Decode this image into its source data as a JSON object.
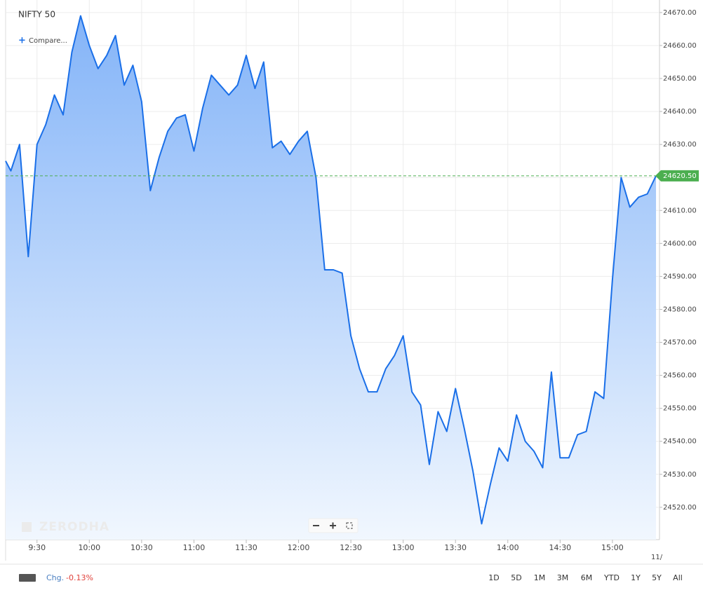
{
  "chart_data": {
    "type": "line",
    "title": "NIFTY 50",
    "x": [
      552,
      555,
      560,
      565,
      570,
      575,
      580,
      585,
      590,
      595,
      600,
      605,
      610,
      615,
      620,
      625,
      630,
      635,
      640,
      645,
      650,
      655,
      660,
      665,
      670,
      675,
      680,
      685,
      690,
      695,
      700,
      705,
      710,
      715,
      720,
      725,
      730,
      735,
      740,
      745,
      750,
      755,
      760,
      765,
      770,
      775,
      780,
      785,
      790,
      795,
      800,
      805,
      810,
      815,
      820,
      825,
      830,
      835,
      840,
      845,
      850,
      855,
      860,
      865,
      870,
      875,
      880,
      885,
      890,
      895,
      900,
      905,
      910,
      915,
      920,
      925
    ],
    "series": [
      {
        "name": "NIFTY 50",
        "color": "#1a6fe8",
        "values": [
          24625,
          24622,
          24630,
          24596,
          24630,
          24636,
          24645,
          24639,
          24658,
          24669,
          24660,
          24653,
          24657,
          24663,
          24648,
          24654,
          24643,
          24616,
          24626,
          24634,
          24638,
          24639,
          24628,
          24641,
          24651,
          24648,
          24645,
          24648,
          24657,
          24647,
          24655,
          24629,
          24631,
          24627,
          24631,
          24634,
          24620,
          24592,
          24592,
          24591,
          24572,
          24562,
          24555,
          24555,
          24562,
          24566,
          24572,
          24555,
          24551,
          24533,
          24549,
          24543,
          24556,
          24544,
          24531,
          24515,
          24527,
          24538,
          24534,
          24548,
          24540,
          24537,
          24532,
          24561,
          24535,
          24535,
          24542,
          24543,
          24555,
          24553,
          24589,
          24620,
          24611,
          24614,
          24615,
          24620.5
        ]
      }
    ],
    "xlim": [
      552,
      927
    ],
    "xticks": [
      {
        "value": 570,
        "label": "9:30"
      },
      {
        "value": 600,
        "label": "10:00"
      },
      {
        "value": 630,
        "label": "10:30"
      },
      {
        "value": 660,
        "label": "11:00"
      },
      {
        "value": 690,
        "label": "11:30"
      },
      {
        "value": 720,
        "label": "12:00"
      },
      {
        "value": 750,
        "label": "12:30"
      },
      {
        "value": 780,
        "label": "13:00"
      },
      {
        "value": 810,
        "label": "13:30"
      },
      {
        "value": 840,
        "label": "14:00"
      },
      {
        "value": 870,
        "label": "14:30"
      },
      {
        "value": 900,
        "label": "15:00"
      }
    ],
    "ylim": [
      24510.2,
      24673.8
    ],
    "yticks": [
      {
        "value": 24520,
        "label": "24520.00"
      },
      {
        "value": 24530,
        "label": "24530.00"
      },
      {
        "value": 24540,
        "label": "24540.00"
      },
      {
        "value": 24550,
        "label": "24550.00"
      },
      {
        "value": 24560,
        "label": "24560.00"
      },
      {
        "value": 24570,
        "label": "24570.00"
      },
      {
        "value": 24580,
        "label": "24580.00"
      },
      {
        "value": 24590,
        "label": "24590.00"
      },
      {
        "value": 24600,
        "label": "24600.00"
      },
      {
        "value": 24610,
        "label": "24610.00"
      },
      {
        "value": 24620,
        "label": "24620.00"
      },
      {
        "value": 24630,
        "label": "24630.00"
      },
      {
        "value": 24640,
        "label": "24640.00"
      },
      {
        "value": 24650,
        "label": "24650.00"
      },
      {
        "value": 24660,
        "label": "24660.00"
      },
      {
        "value": 24670,
        "label": "24670.00"
      }
    ],
    "grid": true,
    "last_price": {
      "value": 24620.5,
      "label": "24620.50",
      "color": "#4caf50"
    }
  },
  "ui": {
    "compare": "Compare...",
    "watermark": "ZERODHA",
    "date_stub": "11/",
    "change_label": "Chg.",
    "change_value": "-0.13%",
    "ranges": [
      "1D",
      "5D",
      "1M",
      "3M",
      "6M",
      "YTD",
      "1Y",
      "5Y",
      "All"
    ]
  }
}
